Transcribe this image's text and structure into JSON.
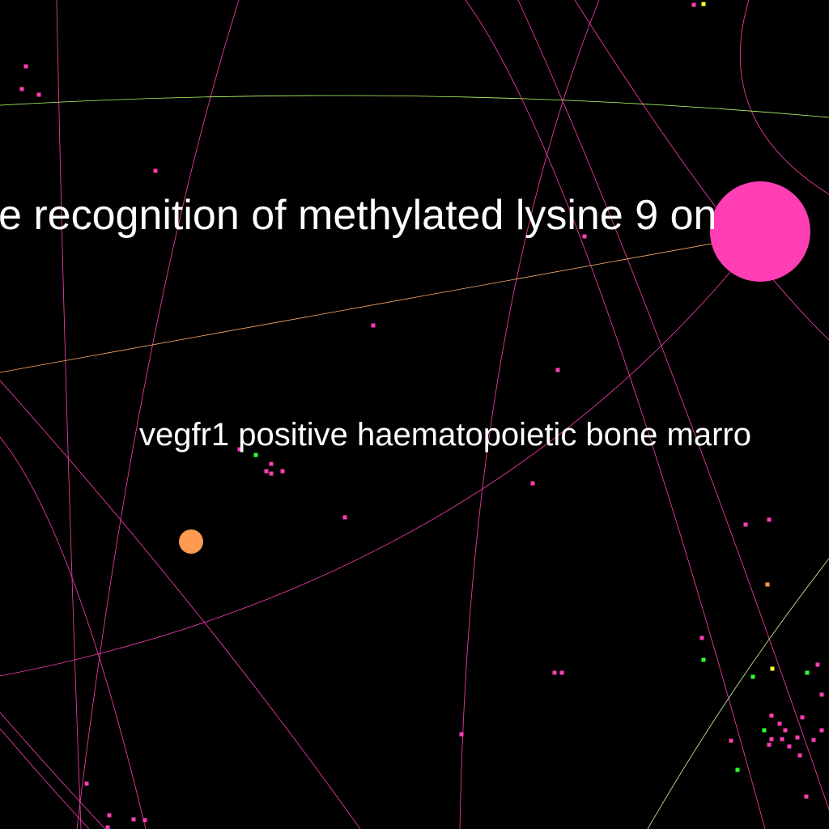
{
  "view": {
    "background": "#000000",
    "description_visible": false
  },
  "labels": {
    "primary": "e recognition of methylated lysine 9 on",
    "secondary": "vegfr1 positive haematopoietic bone marro"
  },
  "colors": {
    "magenta": "#ff3eb5",
    "orange": "#ff9a52",
    "green": "#33ff33",
    "yellow": "#ffff33",
    "peach": "#ffc080",
    "lime": "#b8ff6a"
  }
}
